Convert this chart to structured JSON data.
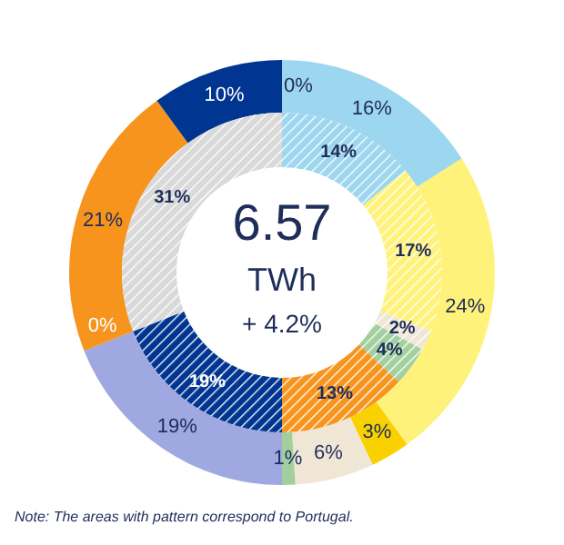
{
  "chart_data": [
    {
      "type": "donut",
      "title": "6.57",
      "subtitle": "TWh",
      "annotations": [
        "+ 4.2%",
        "Note: The  areas with pattern correspond  to Portugal."
      ],
      "categories": [
        null,
        null,
        null,
        null,
        null,
        null,
        null,
        null,
        null,
        null
      ],
      "values": [
        16,
        24,
        3,
        6,
        1,
        19,
        0,
        21,
        10,
        0
      ],
      "colors": [
        "#9dd6ef",
        "#fff27a",
        "#f9d000",
        "#efe6d6",
        "#a3cf9f",
        "#9fa8e0",
        "#555555",
        "#f7941d",
        "#003591",
        "#7fb8e0"
      ],
      "value_labels": [
        "16%",
        "24%",
        "3%",
        "6%",
        "1%",
        "19%",
        "0%",
        "21%",
        "10%",
        "0%"
      ]
    },
    {
      "type": "donut",
      "categories": [
        null,
        null,
        null,
        null,
        null,
        null,
        null
      ],
      "values": [
        14,
        17,
        2,
        4,
        13,
        19,
        31
      ],
      "colors": [
        "#9dd6ef",
        "#fff27a",
        "#efe6d6",
        "#a3cf9f",
        "#f7941d",
        "#003591",
        "#d9d9d9"
      ],
      "value_labels": [
        "14%",
        "17%",
        "2%",
        "4%",
        "13%",
        "19%",
        "31%"
      ]
    }
  ]
}
